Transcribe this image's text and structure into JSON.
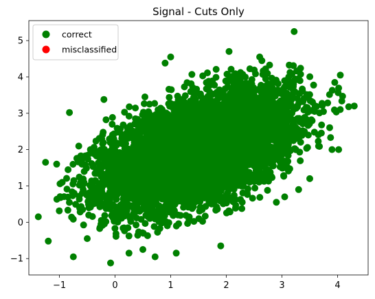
{
  "chart_data": {
    "type": "scatter",
    "title": "Signal - Cuts Only",
    "xlabel": "",
    "ylabel": "",
    "xlim": [
      -1.55,
      4.55
    ],
    "ylim": [
      -1.45,
      5.55
    ],
    "xticks": [
      -1,
      0,
      1,
      2,
      3,
      4
    ],
    "yticks": [
      -1,
      0,
      1,
      2,
      3,
      4,
      5
    ],
    "grid": false,
    "legend_position": "top-left",
    "series": [
      {
        "name": "correct",
        "color": "#008000",
        "distribution": {
          "mean": [
            1.5,
            2.0
          ],
          "std": [
            0.85,
            0.8
          ],
          "correlation": 0.5
        },
        "points": [
          [
            3.22,
            5.25
          ],
          [
            2.05,
            4.7
          ],
          [
            2.6,
            4.55
          ],
          [
            1.0,
            4.55
          ],
          [
            0.9,
            4.38
          ],
          [
            4.05,
            4.05
          ],
          [
            3.95,
            3.85
          ],
          [
            4.3,
            3.2
          ],
          [
            4.2,
            3.18
          ],
          [
            -0.2,
            3.38
          ],
          [
            -0.82,
            3.02
          ],
          [
            -1.25,
            1.65
          ],
          [
            -1.05,
            1.6
          ],
          [
            -1.38,
            0.15
          ],
          [
            -1.2,
            -0.52
          ],
          [
            -0.75,
            -0.95
          ],
          [
            -0.08,
            -1.12
          ],
          [
            0.72,
            -0.95
          ],
          [
            1.1,
            -0.85
          ],
          [
            1.9,
            -0.65
          ],
          [
            0.5,
            -0.75
          ],
          [
            3.05,
            0.7
          ],
          [
            2.9,
            0.55
          ],
          [
            3.9,
            2.0
          ],
          [
            4.02,
            2.0
          ],
          [
            0.25,
            -0.85
          ],
          [
            -0.5,
            -0.45
          ],
          [
            3.5,
            1.2
          ],
          [
            3.3,
            0.9
          ],
          [
            -0.95,
            1.1
          ]
        ]
      },
      {
        "name": "misclassified",
        "color": "#ff0000",
        "points": []
      }
    ]
  }
}
